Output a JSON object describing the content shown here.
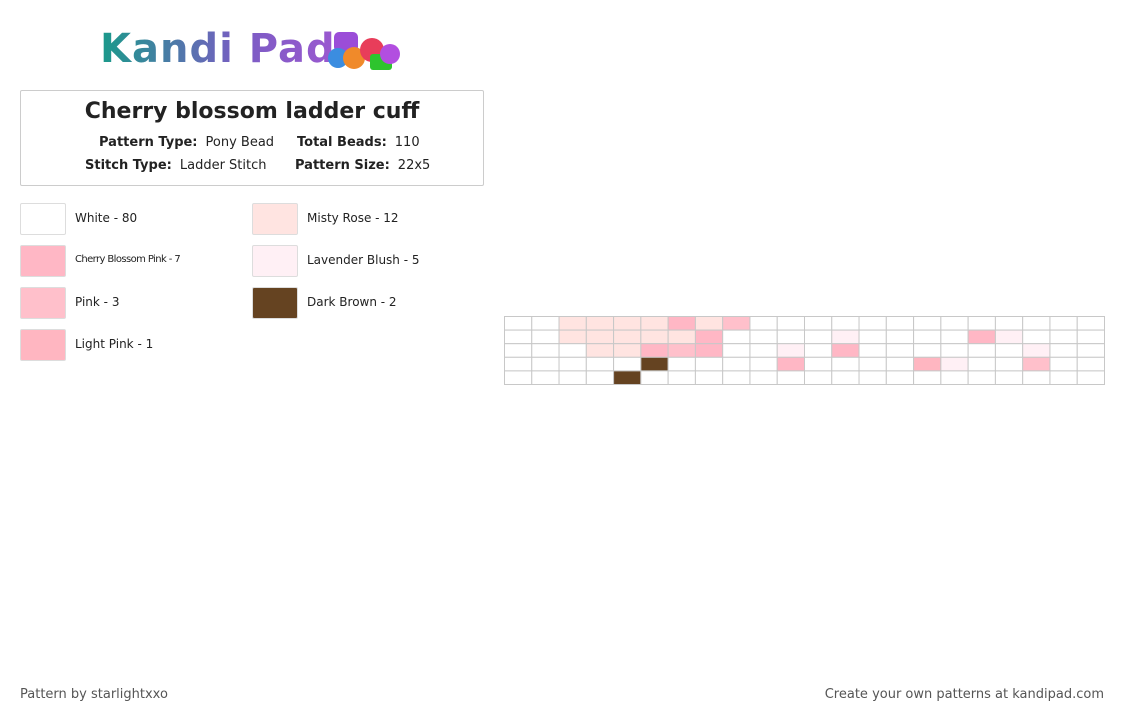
{
  "header": {
    "logo": "Kandi Pad",
    "title": "Cherry blossom ladder cuff"
  },
  "info": [
    {
      "label": "Pattern Type:",
      "value": "Pony Bead"
    },
    {
      "label": "Total Beads:",
      "value": "110"
    },
    {
      "label": "Stitch Type:",
      "value": "Ladder Stitch"
    },
    {
      "label": "Pattern Size:",
      "value": "22x5"
    }
  ],
  "legend": [
    {
      "label": "White - 80",
      "color": "#ffffff"
    },
    {
      "label": "Misty Rose - 12",
      "color": "#ffe4e1"
    },
    {
      "label": "Cherry Blossom Pink - 7",
      "color": "#ffb7c5"
    },
    {
      "label": "Lavender Blush - 5",
      "color": "#fff0f5"
    },
    {
      "label": "Pink - 3",
      "color": "#ffc0cb"
    },
    {
      "label": "Dark Brown - 2",
      "color": "#654321"
    },
    {
      "label": "Light Pink - 1",
      "color": "#ffb6c1"
    }
  ],
  "pattern": {
    "rows": [
      [
        "#ffffff",
        "#ffffff",
        "#ffe4e1",
        "#ffe4e1",
        "#ffe4e1",
        "#ffe4e1",
        "#ffb7c5",
        "#ffe4e1",
        "#ffc0cb",
        "#ffffff",
        "#ffffff",
        "#ffffff",
        "#ffffff",
        "#ffffff",
        "#ffffff",
        "#ffffff",
        "#ffffff",
        "#ffffff",
        "#ffffff",
        "#ffffff",
        "#ffffff",
        "#ffffff"
      ],
      [
        "#ffffff",
        "#ffffff",
        "#ffe4e1",
        "#ffe4e1",
        "#ffe4e1",
        "#ffe4e1",
        "#ffe4e1",
        "#ffb7c5",
        "#ffffff",
        "#ffffff",
        "#ffffff",
        "#ffffff",
        "#fff0f5",
        "#ffffff",
        "#ffffff",
        "#ffffff",
        "#ffffff",
        "#ffb7c5",
        "#fff0f5",
        "#ffffff",
        "#ffffff",
        "#ffffff"
      ],
      [
        "#ffffff",
        "#ffffff",
        "#ffffff",
        "#ffe4e1",
        "#ffe4e1",
        "#ffb7c5",
        "#ffc0cb",
        "#ffb7c5",
        "#ffffff",
        "#ffffff",
        "#fff0f5",
        "#ffffff",
        "#ffb7c5",
        "#ffffff",
        "#ffffff",
        "#ffffff",
        "#ffffff",
        "#ffffff",
        "#ffffff",
        "#fff0f5",
        "#ffffff",
        "#ffffff"
      ],
      [
        "#ffffff",
        "#ffffff",
        "#ffffff",
        "#ffffff",
        "#ffffff",
        "#654321",
        "#ffffff",
        "#ffffff",
        "#ffffff",
        "#ffffff",
        "#ffb7c5",
        "#ffffff",
        "#ffffff",
        "#ffffff",
        "#ffffff",
        "#ffb6c1",
        "#fff0f5",
        "#ffffff",
        "#ffffff",
        "#ffc0cb",
        "#ffffff",
        "#ffffff"
      ],
      [
        "#ffffff",
        "#ffffff",
        "#ffffff",
        "#ffffff",
        "#654321",
        "#ffffff",
        "#ffffff",
        "#ffffff",
        "#ffffff",
        "#ffffff",
        "#ffffff",
        "#ffffff",
        "#ffffff",
        "#ffffff",
        "#ffffff",
        "#ffffff",
        "#ffffff",
        "#ffffff",
        "#ffffff",
        "#ffffff",
        "#ffffff",
        "#ffffff"
      ]
    ]
  },
  "footer": {
    "left": "Pattern by starlightxxo",
    "right": "Create your own patterns at kandipad.com"
  }
}
